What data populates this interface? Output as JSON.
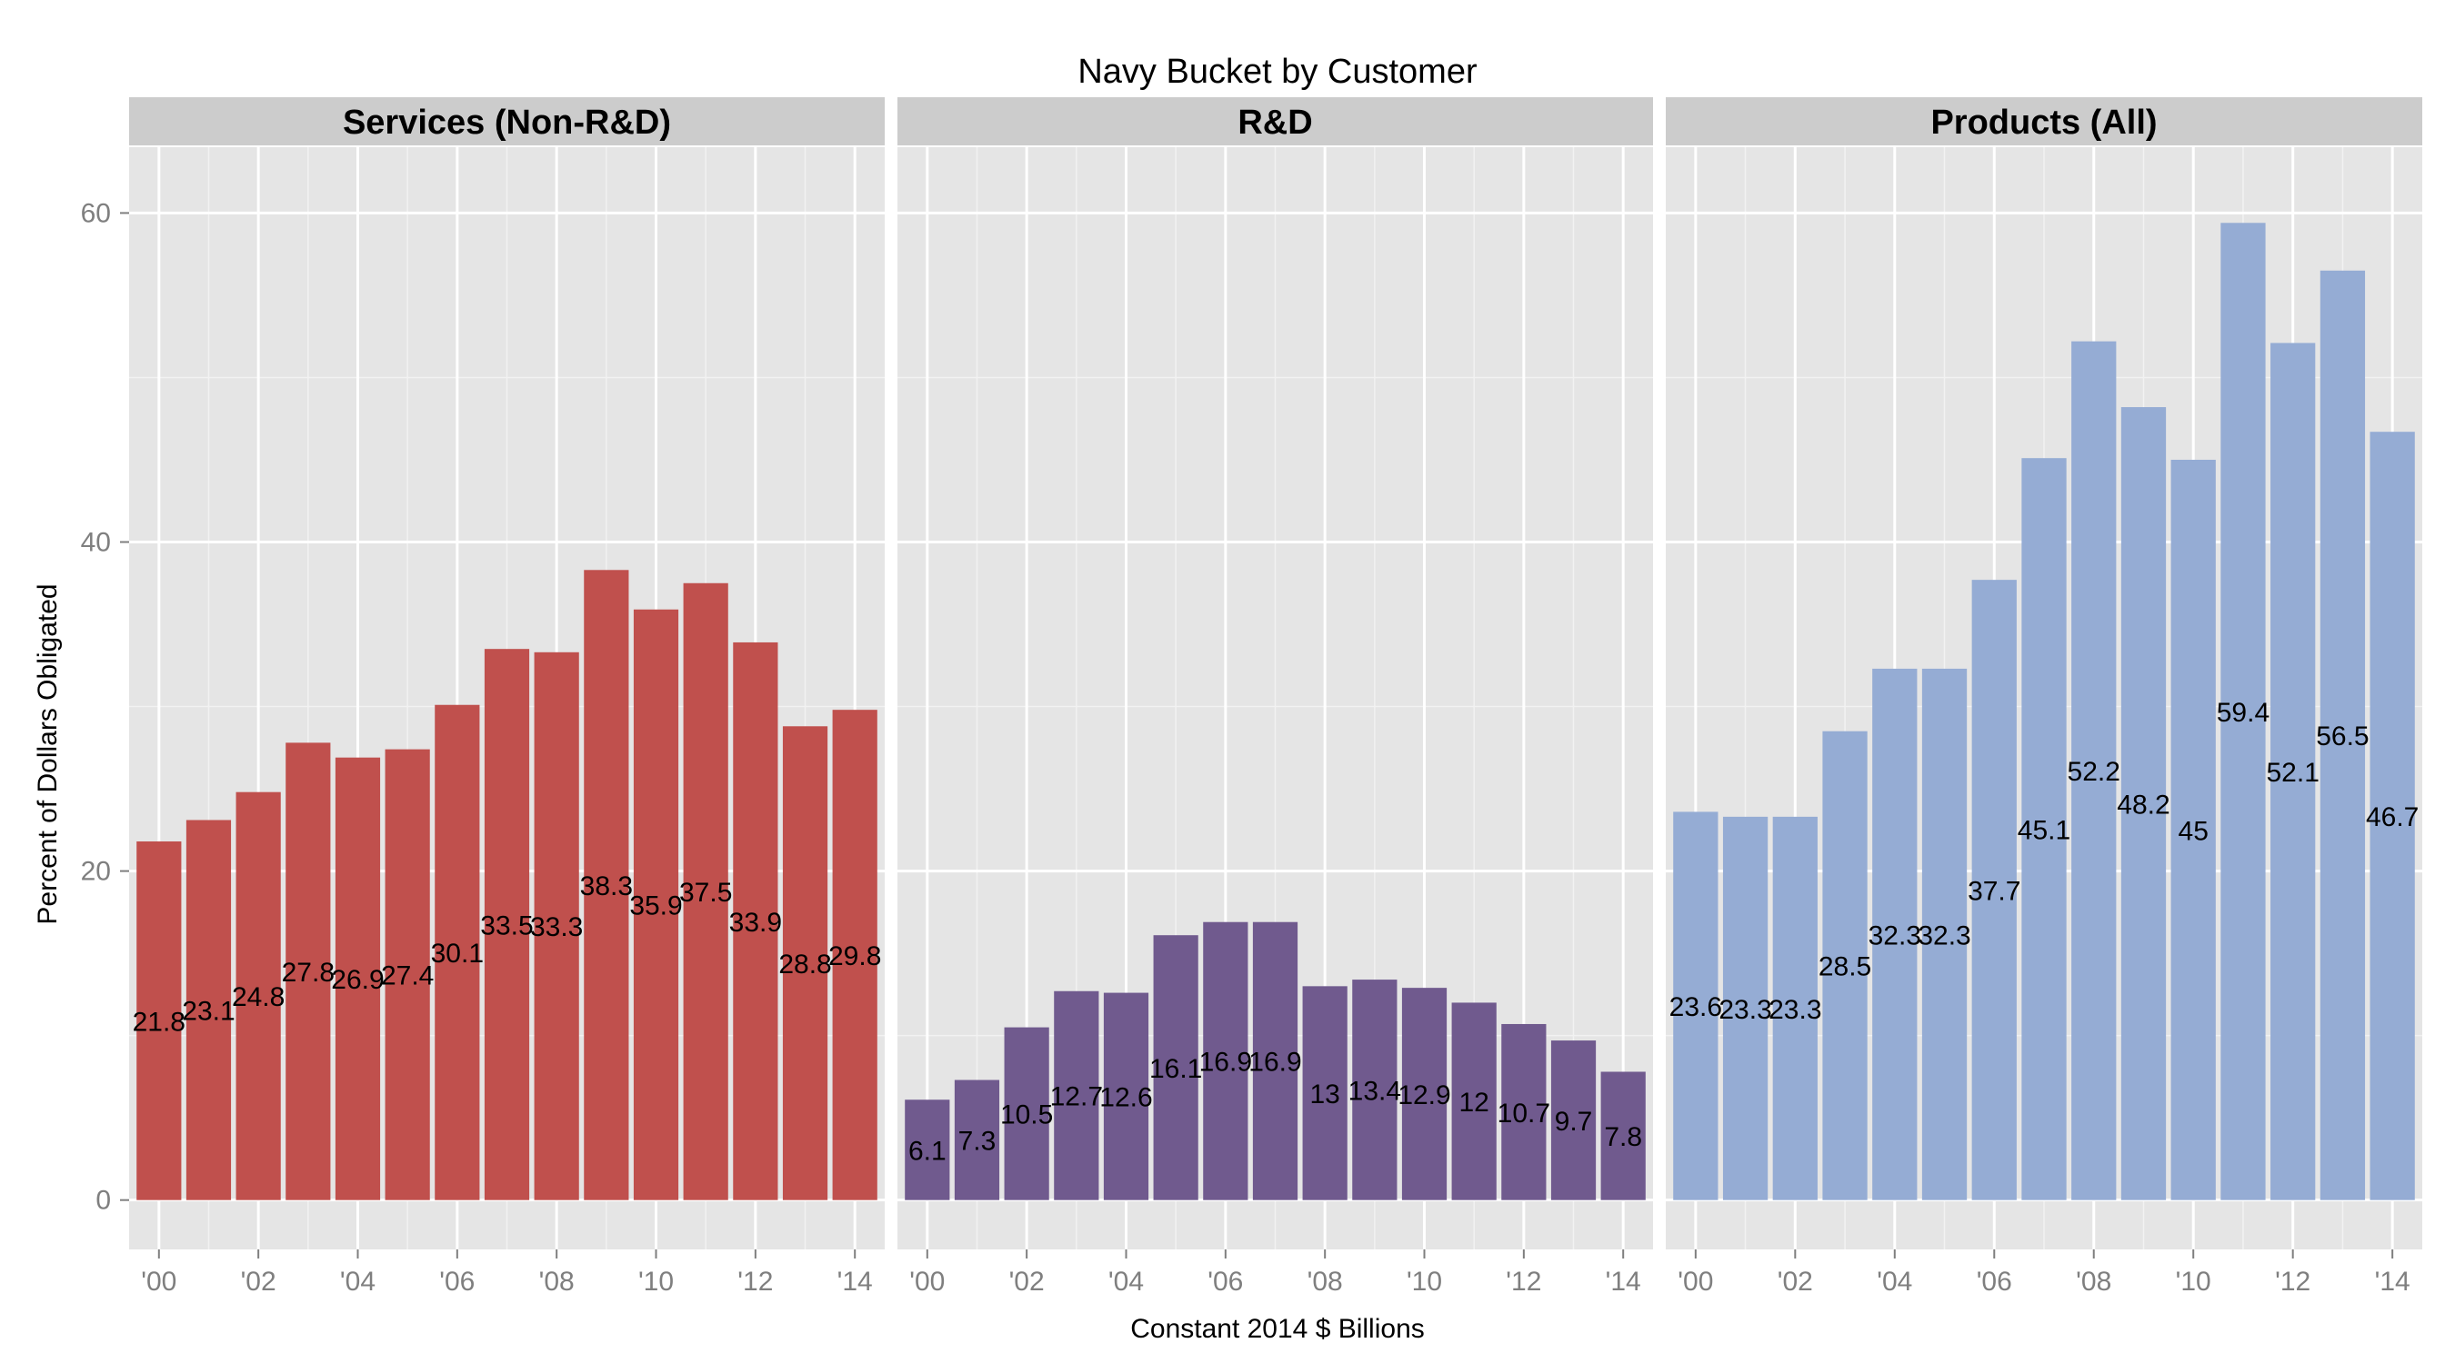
{
  "chart_data": {
    "type": "bar",
    "title": "Navy Bucket by Customer",
    "xlabel": "Constant 2014 $ Billions",
    "ylabel": "Percent of Dollars Obligated",
    "ylim": [
      -3,
      64
    ],
    "y_ticks": [
      0,
      20,
      40,
      60
    ],
    "x": [
      2000,
      2001,
      2002,
      2003,
      2004,
      2005,
      2006,
      2007,
      2008,
      2009,
      2010,
      2011,
      2012,
      2013,
      2014
    ],
    "x_ticks": [
      "'00",
      "'02",
      "'04",
      "'06",
      "'08",
      "'10",
      "'12",
      "'14"
    ],
    "grid": true,
    "legend": "none",
    "panels": [
      {
        "name": "Services (Non-R&D)",
        "color": "#C0504D",
        "values": [
          21.8,
          23.1,
          24.8,
          27.8,
          26.9,
          27.4,
          30.1,
          33.5,
          33.3,
          38.3,
          35.9,
          37.5,
          33.9,
          28.8,
          29.8
        ],
        "labels": [
          "21.8",
          "23.1",
          "24.8",
          "27.8",
          "26.9",
          "27.4",
          "30.1",
          "33.5",
          "33.3",
          "38.3",
          "35.9",
          "37.5",
          "33.9",
          "28.8",
          "29.8"
        ]
      },
      {
        "name": "R&D",
        "color": "#705A8E",
        "values": [
          6.1,
          7.3,
          10.5,
          12.7,
          12.6,
          16.1,
          16.9,
          16.9,
          13,
          13.4,
          12.9,
          12,
          10.7,
          9.7,
          7.8
        ],
        "labels": [
          "6.1",
          "7.3",
          "10.5",
          "12.7",
          "12.6",
          "16.1",
          "16.9",
          "16.9",
          "13",
          "13.4",
          "12.9",
          "12",
          "10.7",
          "9.7",
          "7.8"
        ]
      },
      {
        "name": "Products (All)",
        "color": "#95ACD4",
        "values": [
          23.6,
          23.3,
          23.3,
          28.5,
          32.3,
          32.3,
          37.7,
          45.1,
          52.2,
          48.2,
          45,
          59.4,
          52.1,
          56.5,
          46.7
        ],
        "labels": [
          "23.6",
          "23.3",
          "23.3",
          "28.5",
          "32.3",
          "32.3",
          "37.7",
          "45.1",
          "52.2",
          "48.2",
          "45",
          "59.4",
          "52.1",
          "56.5",
          "46.7"
        ]
      }
    ]
  }
}
